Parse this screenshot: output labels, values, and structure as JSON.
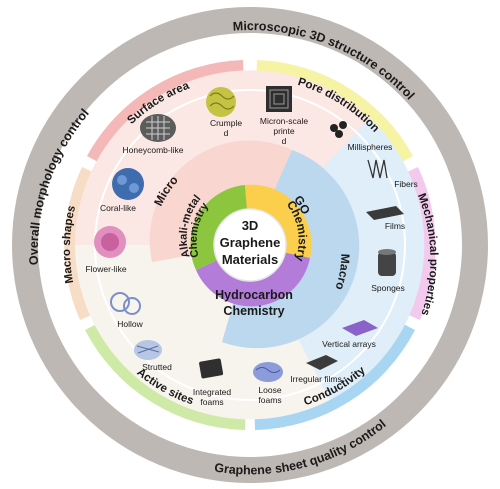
{
  "outer_ring": {
    "microscopic": "Microscopic 3D structure control",
    "overall": "Overall morphology control",
    "graphene_sheet": "Graphene sheet quality control"
  },
  "segments": {
    "surface_area": "Surface area",
    "pore_distribution": "Pore distribution",
    "mechanical_properties": "Mechanical properties",
    "conductivity": "Conductivity",
    "active_sites": "Active sites",
    "macro_shapes": "Macro shapes"
  },
  "scale": {
    "micro": "Micro",
    "macro": "Macro"
  },
  "center": {
    "line1": "3D",
    "line2": "Graphene",
    "line3": "Materials"
  },
  "chemistry": {
    "alkali_1": "Alkali-metal",
    "alkali_2": "Chemistry",
    "go_1": "GO",
    "go_2": "Chemistry",
    "hydro_1": "Hydrocarbon",
    "hydro_2": "Chemistry"
  },
  "items": {
    "honeycomb": "Honeycomb-like",
    "crumpled_1": "Crumple",
    "crumpled_2": "d",
    "micron_1": "Micron-scale",
    "micron_2": "printe",
    "micron_3": "d",
    "millispheres": "Millispheres",
    "fibers": "Fibers",
    "films": "Films",
    "sponges": "Sponges",
    "vertical_arrays": "Vertical arrays",
    "irregular_films": "Irregular films",
    "loose_1": "Loose",
    "loose_2": "foams",
    "integrated_1": "Integrated",
    "integrated_2": "foams",
    "strutted": "Strutted",
    "hollow": "Hollow",
    "flower": "Flower-like",
    "coral": "Coral-like"
  },
  "colors": {
    "outer_gray": "#bdb8b3",
    "surface_area": "#f5b8b8",
    "pore_distribution": "#f6f3a4",
    "mechanical": "#f3c9ee",
    "conductivity": "#a8d6f2",
    "active_sites": "#cfe9a6",
    "macro_shapes": "#f7dcc6",
    "sector_micro": "#fbe7e3",
    "sector_macro": "#dfeef9",
    "alkali": "#8cc63f",
    "go": "#fbcf4c",
    "hydrocarbon": "#b27cd8",
    "center_fill": "#ffffff"
  }
}
